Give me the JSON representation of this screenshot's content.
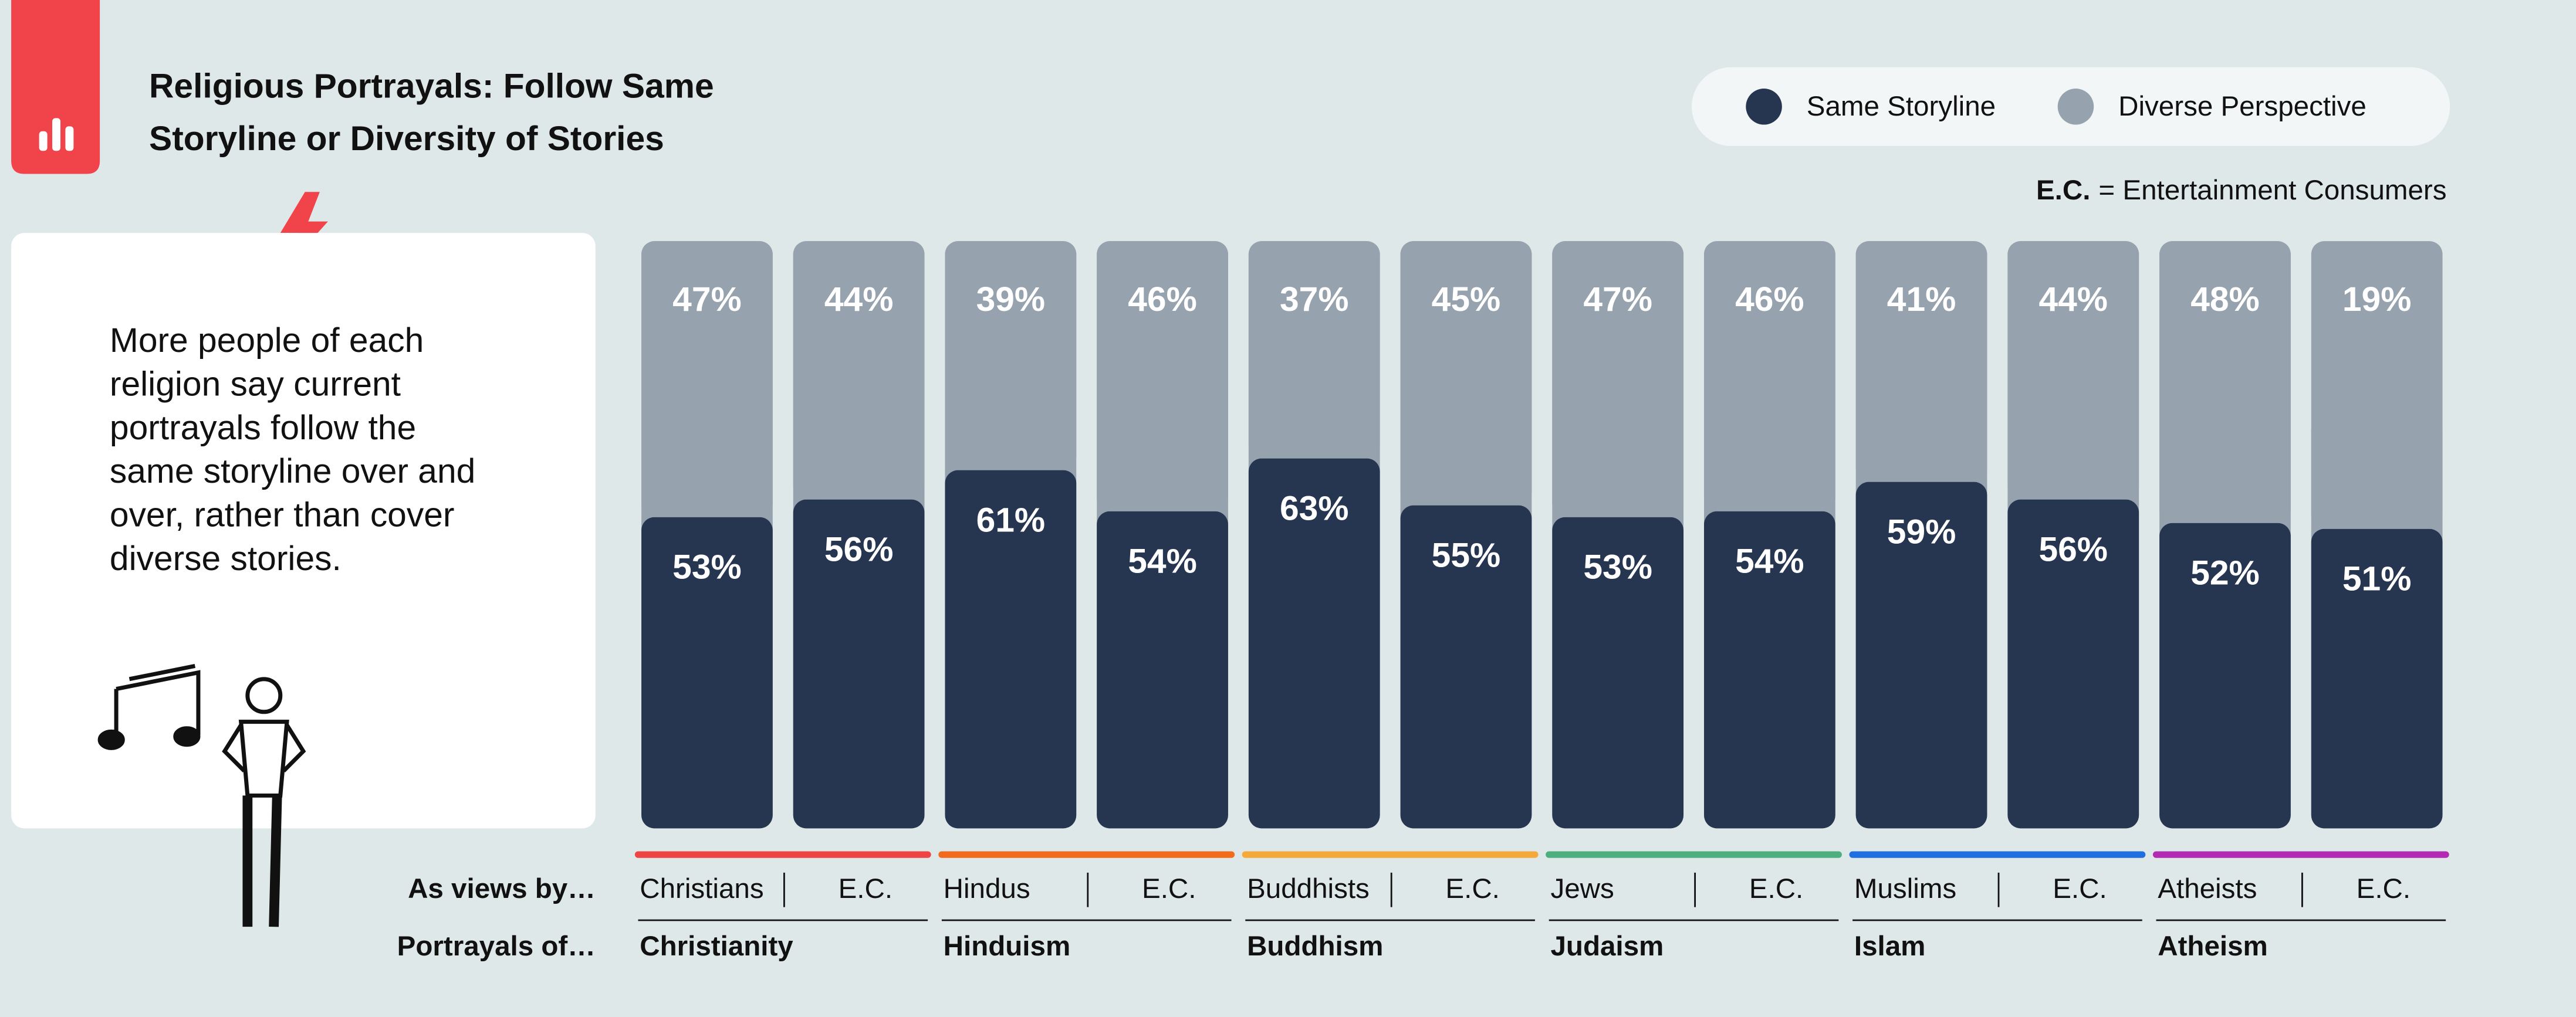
{
  "chart_data": {
    "type": "stacked_bar",
    "title_lines": [
      "Religious Portrayals: Follow Same",
      "Storyline or Diversity of Stories"
    ],
    "note_abbr": "E.C.",
    "note_text": "= Entertainment Consumers",
    "description_lines": [
      "More people of each",
      "religion say current",
      "portrayals follow the",
      "same storyline over and",
      "over, rather than cover",
      "diverse stories."
    ],
    "row_labels": [
      "As views by…",
      "Portrayals of…"
    ],
    "categories": [
      "Christians",
      "E.C.",
      "Hindus",
      "E.C.",
      "Buddhists",
      "E.C.",
      "Jews",
      "E.C.",
      "Muslims",
      "E.C.",
      "Atheists",
      "E.C."
    ],
    "groups": [
      {
        "name": "Christianity",
        "color": "#ef4444"
      },
      {
        "name": "Hinduism",
        "color": "#f26b1d"
      },
      {
        "name": "Buddhism",
        "color": "#f5a93a"
      },
      {
        "name": "Judaism",
        "color": "#4caf7d"
      },
      {
        "name": "Islam",
        "color": "#1f6fe0"
      },
      {
        "name": "Atheism",
        "color": "#b32bb3"
      }
    ],
    "ylim": [
      0,
      100
    ],
    "series": [
      {
        "name": "Same Storyline",
        "color": "#273650",
        "values": [
          53,
          56,
          61,
          54,
          63,
          55,
          53,
          54,
          59,
          56,
          52,
          51
        ],
        "value_labels": [
          "53%",
          "56%",
          "61%",
          "54%",
          "63%",
          "55%",
          "53%",
          "54%",
          "59%",
          "56%",
          "52%",
          "51%"
        ]
      },
      {
        "name": "Diverse Perspective",
        "color": "#96a2ad",
        "values": [
          47,
          44,
          39,
          46,
          37,
          45,
          47,
          46,
          41,
          44,
          48,
          19
        ],
        "value_labels": [
          "47%",
          "44%",
          "39%",
          "46%",
          "37%",
          "45%",
          "47%",
          "46%",
          "41%",
          "44%",
          "48%",
          "19%"
        ]
      }
    ]
  }
}
